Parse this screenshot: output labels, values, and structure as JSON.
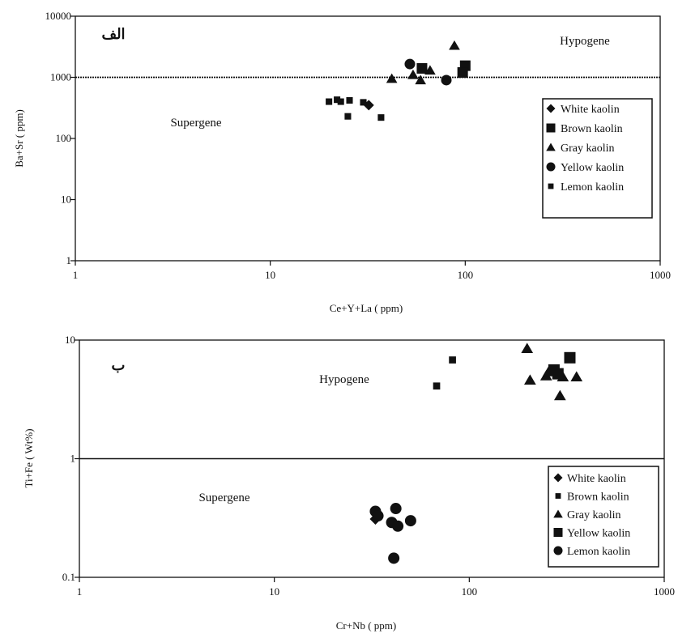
{
  "chart_data": [
    {
      "type": "scatter",
      "panel_label": "الف",
      "xlabel": "Ce+Y+La ( ppm)",
      "ylabel": "Ba+Sr ( ppm)",
      "xscale": "log",
      "yscale": "log",
      "xlim": [
        1,
        1000
      ],
      "ylim": [
        1,
        10000
      ],
      "x_ticks": [
        "1",
        "10",
        "100",
        "1000"
      ],
      "y_ticks": [
        "1",
        "10",
        "100",
        "1000",
        "10000"
      ],
      "x_tick_values": [
        1,
        10,
        100,
        1000
      ],
      "y_tick_values": [
        1,
        10,
        100,
        1000,
        10000
      ],
      "threshold": {
        "axis": "y",
        "value": 1000
      },
      "regions": {
        "upper": "Hypogene",
        "lower": "Supergene"
      },
      "legend_position": "right",
      "series": [
        {
          "name": "White kaolin",
          "marker": "diamond",
          "points": [
            [
              32,
              350
            ]
          ]
        },
        {
          "name": "Brown kaolin",
          "marker": "square",
          "points": [
            [
              60,
              1400
            ],
            [
              100,
              1550
            ],
            [
              97,
              1200
            ]
          ]
        },
        {
          "name": "Gray kaolin",
          "marker": "triangle",
          "points": [
            [
              42,
              950
            ],
            [
              54,
              1100
            ],
            [
              59,
              900
            ],
            [
              66,
              1300
            ],
            [
              88,
              3300
            ]
          ]
        },
        {
          "name": "Yellow kaolin",
          "marker": "circle",
          "points": [
            [
              52,
              1650
            ],
            [
              80,
              900
            ]
          ]
        },
        {
          "name": "Lemon kaolin",
          "marker": "small-square",
          "points": [
            [
              20,
              400
            ],
            [
              22,
              430
            ],
            [
              23,
              400
            ],
            [
              25,
              230
            ],
            [
              25.5,
              420
            ],
            [
              30,
              390
            ],
            [
              37,
              220
            ]
          ]
        }
      ]
    },
    {
      "type": "scatter",
      "panel_label": "ب",
      "xlabel": "Cr+Nb ( ppm)",
      "ylabel": "Ti+Fe ( Wt%)",
      "xscale": "log",
      "yscale": "log",
      "xlim": [
        1,
        1000
      ],
      "ylim": [
        0.1,
        10
      ],
      "x_ticks": [
        "1",
        "10",
        "100",
        "1000"
      ],
      "y_ticks": [
        "0.1",
        "1",
        "10"
      ],
      "x_tick_values": [
        1,
        10,
        100,
        1000
      ],
      "y_tick_values": [
        0.1,
        1,
        10
      ],
      "threshold": {
        "axis": "y",
        "value": 1
      },
      "regions": {
        "upper": "Hypogene",
        "lower": "Supergene"
      },
      "legend_position": "bottom-right",
      "series": [
        {
          "name": "White kaolin",
          "marker": "diamond",
          "points": [
            [
              33,
              0.31
            ]
          ]
        },
        {
          "name": "Brown kaolin",
          "marker": "small-square",
          "points": [
            [
              68,
              4.1
            ],
            [
              82,
              6.8
            ]
          ]
        },
        {
          "name": "Gray kaolin",
          "marker": "triangle",
          "points": [
            [
              198,
              8.5
            ],
            [
              205,
              4.6
            ],
            [
              248,
              5.0
            ],
            [
              255,
              5.4
            ],
            [
              292,
              3.4
            ],
            [
              302,
              4.9
            ],
            [
              355,
              4.9
            ]
          ]
        },
        {
          "name": "Yellow kaolin",
          "marker": "square",
          "points": [
            [
              272,
              5.6
            ],
            [
              285,
              5.2
            ],
            [
              328,
              7.1
            ]
          ]
        },
        {
          "name": "Lemon kaolin",
          "marker": "circle",
          "points": [
            [
              33,
              0.36
            ],
            [
              34,
              0.33
            ],
            [
              40,
              0.29
            ],
            [
              41,
              0.145
            ],
            [
              42,
              0.38
            ],
            [
              43,
              0.27
            ],
            [
              50,
              0.3
            ]
          ]
        }
      ]
    }
  ]
}
